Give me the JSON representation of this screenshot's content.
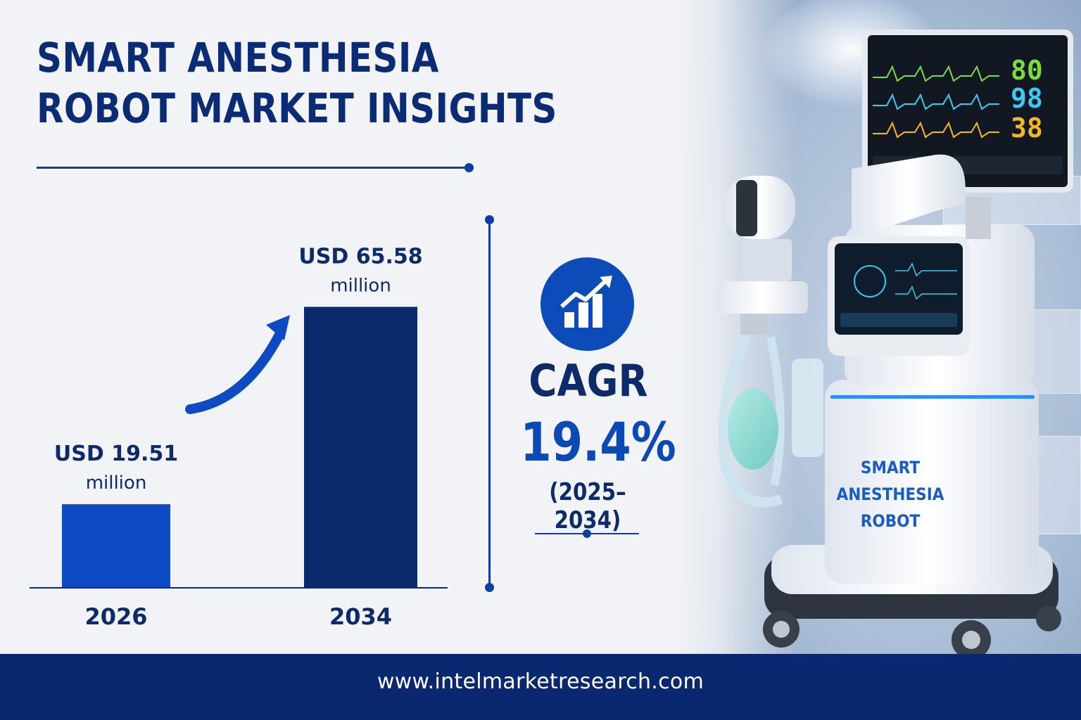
{
  "title": "SMART ANESTHESIA ROBOT MARKET INSIGHTS",
  "chart_data": {
    "type": "bar",
    "categories": [
      "2026",
      "2034"
    ],
    "values": [
      19.51,
      65.58
    ],
    "value_labels": [
      {
        "amount": "USD 19.51",
        "unit": "million"
      },
      {
        "amount": "USD 65.58",
        "unit": "million"
      }
    ],
    "bar_colors": [
      "#0d4bc4",
      "#0a2a6e"
    ],
    "ylim": [
      0,
      75
    ],
    "title": "",
    "xlabel": "",
    "ylabel": "",
    "grid": false
  },
  "cagr": {
    "label": "CAGR",
    "value": "19.4%",
    "period": "(2025–2034)",
    "icon": "growth-chart-icon"
  },
  "illustration": {
    "robot_label": "SMART ANESTHESIA ROBOT",
    "monitor_values": [
      {
        "value": "80",
        "color": "#7cd93f"
      },
      {
        "value": "98",
        "color": "#3ec7f0"
      },
      {
        "value": "38",
        "color": "#f2b81e"
      }
    ]
  },
  "footer": {
    "url": "www.intelmarketresearch.com"
  },
  "colors": {
    "primary_dark": "#0a2870",
    "primary": "#0b3fa6",
    "accent": "#0d4bc4",
    "background": "#f1f3f6"
  }
}
